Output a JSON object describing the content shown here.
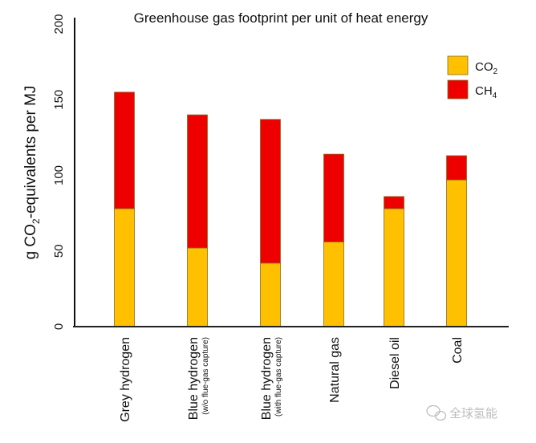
{
  "chart_data": {
    "type": "bar",
    "stacked": true,
    "title": "Greenhouse gas footprint per unit of heat energy",
    "ylabel": {
      "prefix": "g CO",
      "sub": "2",
      "suffix": "-equivalents per MJ"
    },
    "ylim": [
      0,
      200
    ],
    "yticks": [
      0,
      50,
      100,
      150,
      200
    ],
    "grid": false,
    "legend_position": "top-right",
    "categories": [
      {
        "label": "Grey hydrogen",
        "sublabel": ""
      },
      {
        "label": "Blue hydrogen",
        "sublabel": "(w/o flue-gas capture)"
      },
      {
        "label": "Blue hydrogen",
        "sublabel": "(with flue-gas capture)"
      },
      {
        "label": "Natural gas",
        "sublabel": ""
      },
      {
        "label": "Diesel oil",
        "sublabel": ""
      },
      {
        "label": "Coal",
        "sublabel": ""
      }
    ],
    "series": [
      {
        "name": "CO",
        "sub": "2",
        "color": "#ffc000",
        "values": [
          78,
          52,
          42,
          56,
          78,
          97
        ]
      },
      {
        "name": "CH",
        "sub": "4",
        "color": "#ee0000",
        "values": [
          77,
          88,
          95,
          58,
          8,
          16
        ]
      }
    ]
  },
  "watermark": "全球氢能"
}
